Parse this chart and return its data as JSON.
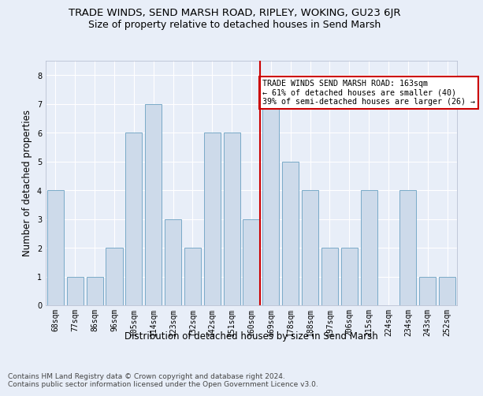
{
  "title": "TRADE WINDS, SEND MARSH ROAD, RIPLEY, WOKING, GU23 6JR",
  "subtitle": "Size of property relative to detached houses in Send Marsh",
  "xlabel": "Distribution of detached houses by size in Send Marsh",
  "ylabel": "Number of detached properties",
  "categories": [
    "68sqm",
    "77sqm",
    "86sqm",
    "96sqm",
    "105sqm",
    "114sqm",
    "123sqm",
    "132sqm",
    "142sqm",
    "151sqm",
    "160sqm",
    "169sqm",
    "178sqm",
    "188sqm",
    "197sqm",
    "206sqm",
    "215sqm",
    "224sqm",
    "234sqm",
    "243sqm",
    "252sqm"
  ],
  "values": [
    4,
    1,
    1,
    2,
    6,
    7,
    3,
    2,
    6,
    6,
    3,
    7,
    5,
    4,
    2,
    2,
    4,
    0,
    4,
    1,
    1
  ],
  "bar_color": "#cddaea",
  "bar_edge_color": "#7aaac8",
  "highlight_index": 10,
  "highlight_line_color": "#cc0000",
  "annotation_text": "TRADE WINDS SEND MARSH ROAD: 163sqm\n← 61% of detached houses are smaller (40)\n39% of semi-detached houses are larger (26) →",
  "annotation_box_color": "#ffffff",
  "annotation_box_edge": "#cc0000",
  "ylim": [
    0,
    8.5
  ],
  "yticks": [
    0,
    1,
    2,
    3,
    4,
    5,
    6,
    7,
    8
  ],
  "footer": "Contains HM Land Registry data © Crown copyright and database right 2024.\nContains public sector information licensed under the Open Government Licence v3.0.",
  "background_color": "#e8eef8",
  "grid_color": "#ffffff",
  "title_fontsize": 9.5,
  "subtitle_fontsize": 9,
  "tick_fontsize": 7,
  "ylabel_fontsize": 8.5,
  "xlabel_fontsize": 8.5,
  "footer_fontsize": 6.5
}
